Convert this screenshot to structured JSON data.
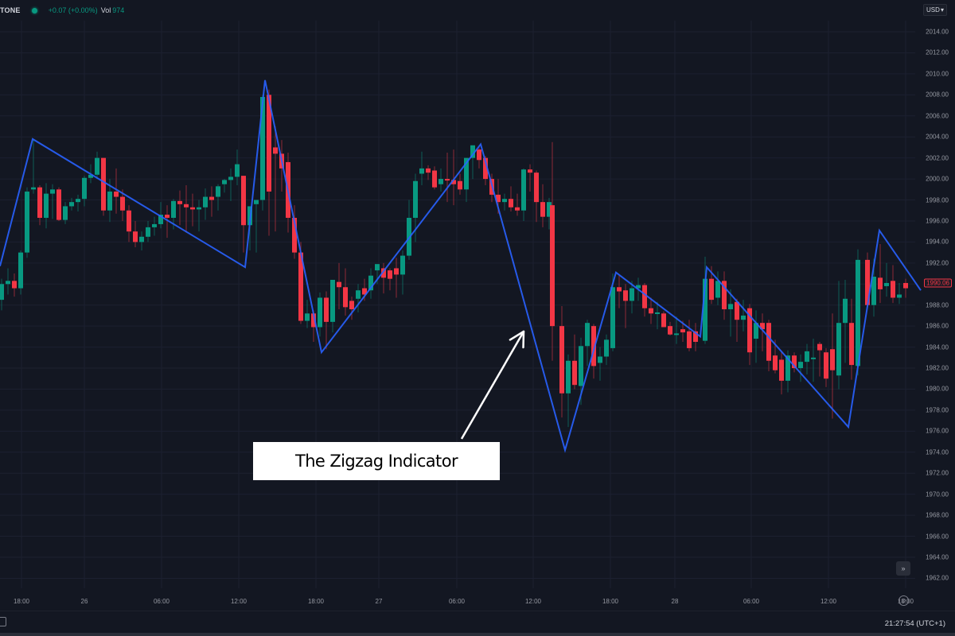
{
  "header": {
    "symbol": "TONE",
    "status_color": "#089981",
    "change": "+0.07 (+0.00%)",
    "vol_label": "Vol",
    "vol_value": "974",
    "currency": "USD",
    "currency_icon": "chevron-down-icon"
  },
  "footer": {
    "clock": "21:27:54 (UTC+1)",
    "calendar_icon": "calendar-icon",
    "settings_icon": "settings-icon",
    "goto_icon": "go-to-realtime-icon"
  },
  "callout": {
    "text": "The Zigzag Indicator"
  },
  "colors": {
    "background": "#131722",
    "up": "#089981",
    "down": "#f23645",
    "zigzag": "#2962ff",
    "grid": "#1c2030",
    "arrow": "#ffffff"
  },
  "chart_data": {
    "type": "candlestick",
    "title": "",
    "xlabel": "",
    "ylabel": "Price (USD)",
    "ylim": [
      1961,
      2015
    ],
    "grid": true,
    "current_price": "1990.06",
    "y_ticks": [
      "2014.00",
      "2012.00",
      "2010.00",
      "2008.00",
      "2006.00",
      "2004.00",
      "2002.00",
      "2000.00",
      "1998.00",
      "1996.00",
      "1994.00",
      "1992.00",
      "1990.00",
      "1988.00",
      "1986.00",
      "1984.00",
      "1982.00",
      "1980.00",
      "1978.00",
      "1976.00",
      "1974.00",
      "1972.00",
      "1970.00",
      "1968.00",
      "1966.00",
      "1964.00",
      "1962.00"
    ],
    "x_ticks": [
      {
        "label": "18:00",
        "x": 27
      },
      {
        "label": "26",
        "x": 106
      },
      {
        "label": "06:00",
        "x": 203
      },
      {
        "label": "12:00",
        "x": 300
      },
      {
        "label": "18:00",
        "x": 397
      },
      {
        "label": "27",
        "x": 476
      },
      {
        "label": "06:00",
        "x": 574
      },
      {
        "label": "12:00",
        "x": 670
      },
      {
        "label": "18:00",
        "x": 767
      },
      {
        "label": "28",
        "x": 848
      },
      {
        "label": "06:00",
        "x": 944
      },
      {
        "label": "12:00",
        "x": 1041
      },
      {
        "label": "18:00",
        "x": 1138
      }
    ],
    "candles": [
      [
        2,
        1988.5,
        1990.5,
        1987.5,
        1990.0
      ],
      [
        10,
        1990.0,
        1991.5,
        1989.0,
        1990.3
      ],
      [
        18,
        1990.3,
        1991.0,
        1988.8,
        1989.6
      ],
      [
        26,
        1989.6,
        1993.2,
        1989.0,
        1993.0
      ],
      [
        34,
        1993.0,
        1999.2,
        1992.5,
        1998.8
      ],
      [
        42,
        1999.0,
        2003.8,
        1998.6,
        1999.2
      ],
      [
        50,
        1999.2,
        1999.4,
        1995.6,
        1996.3
      ],
      [
        58,
        1996.3,
        1999.6,
        1995.3,
        1998.6
      ],
      [
        66,
        1998.6,
        1999.5,
        1996.2,
        1999.0
      ],
      [
        74,
        1999.0,
        1999.2,
        1996.0,
        1996.1
      ],
      [
        82,
        1996.1,
        1997.8,
        1995.7,
        1997.4
      ],
      [
        90,
        1997.4,
        1998.2,
        1997.0,
        1997.8
      ],
      [
        98,
        1997.8,
        1998.5,
        1996.9,
        1998.1
      ],
      [
        106,
        1998.1,
        2000.3,
        1997.4,
        2000.1
      ],
      [
        114,
        2000.1,
        2001.4,
        1999.6,
        2000.4
      ],
      [
        122,
        2000.4,
        2002.6,
        2000.0,
        2002.0
      ],
      [
        130,
        2002.0,
        2002.0,
        1996.5,
        1997.0
      ],
      [
        138,
        1997.0,
        2000.0,
        1995.9,
        1998.8
      ],
      [
        146,
        1998.8,
        2001.0,
        1996.7,
        1998.3
      ],
      [
        154,
        1998.3,
        1999.0,
        1996.0,
        1997.0
      ],
      [
        162,
        1997.0,
        1997.5,
        1994.0,
        1995.0
      ],
      [
        170,
        1995.0,
        1996.0,
        1993.5,
        1994.0
      ],
      [
        178,
        1994.0,
        1995.0,
        1993.2,
        1994.5
      ],
      [
        186,
        1994.5,
        1996.0,
        1994.0,
        1995.4
      ],
      [
        194,
        1995.4,
        1996.4,
        1994.6,
        1995.7
      ],
      [
        202,
        1995.7,
        1997.8,
        1995.3,
        1996.6
      ],
      [
        210,
        1996.6,
        1997.5,
        1994.4,
        1996.3
      ],
      [
        218,
        1996.3,
        1998.1,
        1995.2,
        1997.9
      ],
      [
        226,
        1997.9,
        1998.9,
        1995.6,
        1997.6
      ],
      [
        234,
        1997.6,
        1999.4,
        1994.9,
        1997.3
      ],
      [
        242,
        1997.3,
        1998.6,
        1995.5,
        1997.1
      ],
      [
        250,
        1997.1,
        1998.0,
        1995.0,
        1997.3
      ],
      [
        258,
        1997.3,
        1999.1,
        1996.1,
        1998.3
      ],
      [
        266,
        1998.3,
        1999.3,
        1996.4,
        1998.0
      ],
      [
        274,
        1998.3,
        1999.5,
        1997.0,
        1999.3
      ],
      [
        282,
        1999.5,
        2000.0,
        1998.7,
        1999.9
      ],
      [
        290,
        1999.9,
        2001.0,
        1997.9,
        2000.2
      ],
      [
        298,
        2000.2,
        2002.8,
        1999.4,
        2001.4
      ],
      [
        306,
        2000.3,
        2000.3,
        1993.0,
        1995.6
      ],
      [
        314,
        1995.6,
        1997.4,
        1993.2,
        1997.4
      ],
      [
        322,
        1997.6,
        1997.6,
        1993.0,
        1998.0
      ],
      [
        330,
        1998.0,
        2008.0,
        1997.0,
        2007.8
      ],
      [
        338,
        2008.0,
        2008.5,
        1994.6,
        1998.8
      ],
      [
        346,
        2003.0,
        2005.0,
        1995.0,
        2002.4
      ],
      [
        354,
        2002.4,
        2003.7,
        1998.8,
        2001.0
      ],
      [
        362,
        2001.6,
        2002.5,
        1994.9,
        1996.3
      ],
      [
        370,
        1996.3,
        1997.5,
        1992.4,
        1993.0
      ],
      [
        378,
        1993.0,
        1994.0,
        1986.2,
        1986.5
      ],
      [
        386,
        1986.5,
        1988.5,
        1985.8,
        1987.2
      ],
      [
        394,
        1987.2,
        1987.5,
        1984.5,
        1985.9
      ],
      [
        402,
        1985.9,
        1989.2,
        1985.0,
        1988.7
      ],
      [
        410,
        1988.7,
        1989.3,
        1983.8,
        1986.4
      ],
      [
        418,
        1986.4,
        1990.4,
        1985.4,
        1990.4
      ],
      [
        426,
        1990.2,
        1992.0,
        1987.6,
        1989.7
      ],
      [
        434,
        1989.7,
        1991.5,
        1987.0,
        1987.8
      ],
      [
        442,
        1988.4,
        1988.8,
        1986.6,
        1987.6
      ],
      [
        450,
        1988.6,
        1990.0,
        1987.3,
        1989.4
      ],
      [
        458,
        1989.6,
        1990.5,
        1988.4,
        1989.0
      ],
      [
        466,
        1989.4,
        1991.5,
        1988.6,
        1990.8
      ],
      [
        474,
        1991.3,
        1991.8,
        1990.0,
        1991.9
      ],
      [
        482,
        1991.5,
        1992.0,
        1989.1,
        1990.6
      ],
      [
        490,
        1991.3,
        1991.5,
        1989.4,
        1990.5
      ],
      [
        498,
        1991.5,
        1992.5,
        1988.7,
        1990.9
      ],
      [
        506,
        1990.9,
        1993.2,
        1989.0,
        1992.7
      ],
      [
        514,
        1992.7,
        1998.0,
        1992.3,
        1996.3
      ],
      [
        522,
        1996.3,
        2000.5,
        1994.0,
        1999.8
      ],
      [
        530,
        2000.5,
        2002.6,
        1999.4,
        2001.0
      ],
      [
        538,
        2001.0,
        2001.3,
        1999.9,
        2000.6
      ],
      [
        546,
        2000.8,
        2001.2,
        1999.0,
        1999.2
      ],
      [
        554,
        1999.5,
        2001.0,
        1998.8,
        2000.0
      ],
      [
        562,
        2000.0,
        2002.5,
        1997.8,
        1999.9
      ],
      [
        570,
        1999.9,
        2002.8,
        1997.5,
        1999.5
      ],
      [
        578,
        1999.8,
        2000.5,
        1998.5,
        1999.0
      ],
      [
        586,
        1999.0,
        2001.0,
        1997.8,
        2002.0
      ],
      [
        594,
        2002.0,
        2003.0,
        2000.0,
        2003.2
      ],
      [
        602,
        2002.8,
        2003.0,
        2001.0,
        2001.8
      ],
      [
        610,
        2002.0,
        2002.2,
        1999.4,
        2000.0
      ],
      [
        618,
        2000.0,
        2000.5,
        1997.8,
        1998.5
      ],
      [
        626,
        1998.5,
        2000.0,
        1996.7,
        1997.8
      ],
      [
        634,
        1997.8,
        1998.6,
        1997.0,
        1998.1
      ],
      [
        642,
        1998.1,
        1999.3,
        1996.9,
        1997.3
      ],
      [
        650,
        1997.3,
        1998.6,
        1996.5,
        1997.0
      ],
      [
        658,
        1997.0,
        2001.0,
        1996.0,
        2000.9
      ],
      [
        666,
        2000.9,
        2001.4,
        1998.8,
        2000.6
      ],
      [
        674,
        2000.6,
        2000.8,
        1995.9,
        1997.8
      ],
      [
        682,
        1997.8,
        1999.5,
        1995.4,
        1996.4
      ],
      [
        690,
        1996.4,
        1998.2,
        1995.2,
        1997.8
      ],
      [
        694,
        1997.5,
        2003.5,
        1982.7,
        1986.0
      ],
      [
        706,
        1986.0,
        1987.9,
        1977.3,
        1979.6
      ],
      [
        714,
        1979.6,
        1983.3,
        1976.4,
        1982.7
      ],
      [
        722,
        1982.7,
        1985.2,
        1980.0,
        1980.4
      ],
      [
        730,
        1980.3,
        1984.9,
        1978.5,
        1984.1
      ],
      [
        738,
        1984.1,
        1986.6,
        1982.2,
        1986.3
      ],
      [
        746,
        1986.0,
        1986.2,
        1981.0,
        1982.2
      ],
      [
        754,
        1982.5,
        1984.0,
        1980.8,
        1983.1
      ],
      [
        762,
        1983.1,
        1985.2,
        1982.3,
        1984.7
      ],
      [
        770,
        1983.9,
        1991.0,
        1983.6,
        1989.7
      ],
      [
        778,
        1989.7,
        1990.8,
        1987.7,
        1989.3
      ],
      [
        786,
        1989.4,
        1990.0,
        1985.8,
        1988.4
      ],
      [
        794,
        1988.4,
        1990.3,
        1987.2,
        1989.6
      ],
      [
        802,
        1989.6,
        1990.6,
        1988.4,
        1989.9
      ],
      [
        810,
        1989.9,
        1990.1,
        1986.9,
        1987.7
      ],
      [
        818,
        1987.7,
        1988.7,
        1986.2,
        1987.2
      ],
      [
        826,
        1987.2,
        1988.3,
        1985.7,
        1987.3
      ],
      [
        834,
        1987.2,
        1987.4,
        1985.9,
        1985.9
      ],
      [
        842,
        1986.0,
        1986.4,
        1985.1,
        1985.2
      ],
      [
        850,
        1985.2,
        1986.9,
        1984.3,
        1985.3
      ],
      [
        858,
        1985.7,
        1986.5,
        1984.5,
        1985.4
      ],
      [
        866,
        1985.5,
        1986.6,
        1983.6,
        1983.9
      ],
      [
        874,
        1985.5,
        1986.3,
        1983.6,
        1984.5
      ],
      [
        886,
        1984.6,
        1992.6,
        1984.3,
        1990.5
      ],
      [
        894,
        1990.5,
        1991.7,
        1988.1,
        1988.5
      ],
      [
        902,
        1988.7,
        1991.2,
        1988.0,
        1990.3
      ],
      [
        910,
        1990.3,
        1991.2,
        1986.6,
        1987.6
      ],
      [
        918,
        1987.6,
        1989.5,
        1985.0,
        1988.1
      ],
      [
        926,
        1988.3,
        1988.6,
        1984.5,
        1986.6
      ],
      [
        934,
        1986.6,
        1988.5,
        1985.5,
        1987.0
      ],
      [
        942,
        1987.7,
        1988.1,
        1982.3,
        1983.5
      ],
      [
        950,
        1984.8,
        1987.5,
        1982.5,
        1986.3
      ],
      [
        958,
        1986.3,
        1987.2,
        1983.6,
        1985.7
      ],
      [
        966,
        1986.3,
        1986.6,
        1981.7,
        1982.7
      ],
      [
        974,
        1983.2,
        1984.7,
        1981.5,
        1981.8
      ],
      [
        982,
        1982.8,
        1983.6,
        1979.5,
        1980.8
      ],
      [
        990,
        1980.8,
        1983.7,
        1979.7,
        1983.2
      ],
      [
        998,
        1983.2,
        1983.5,
        1981.6,
        1982.0
      ],
      [
        1006,
        1982.0,
        1983.3,
        1980.7,
        1982.6
      ],
      [
        1014,
        1982.6,
        1984.3,
        1981.4,
        1983.6
      ],
      [
        1022,
        1982.9,
        1984.8,
        1980.7,
        1983.0
      ],
      [
        1030,
        1984.3,
        1984.5,
        1981.2,
        1983.7
      ],
      [
        1038,
        1983.5,
        1983.9,
        1980.2,
        1981.0
      ],
      [
        1046,
        1983.8,
        1987.2,
        1977.2,
        1981.8
      ],
      [
        1054,
        1981.3,
        1990.3,
        1980.0,
        1986.3
      ],
      [
        1062,
        1986.3,
        1990.4,
        1982.5,
        1988.6
      ],
      [
        1070,
        1986.3,
        1988.6,
        1980.9,
        1982.3
      ],
      [
        1078,
        1982.2,
        1993.3,
        1981.3,
        1992.3
      ],
      [
        1090,
        1992.3,
        1993.0,
        1987.9,
        1988.0
      ],
      [
        1098,
        1988.0,
        1992.4,
        1986.9,
        1990.7
      ],
      [
        1106,
        1990.6,
        1993.8,
        1988.2,
        1989.5
      ],
      [
        1114,
        1989.8,
        1992.0,
        1988.8,
        1990.1
      ],
      [
        1122,
        1990.3,
        1991.8,
        1988.2,
        1988.7
      ],
      [
        1130,
        1988.7,
        1990.1,
        1988.1,
        1989.0
      ],
      [
        1138,
        1990.1,
        1990.5,
        1988.7,
        1989.6
      ]
    ],
    "zigzag": [
      [
        0,
        1991.7
      ],
      [
        41,
        2003.8
      ],
      [
        308,
        1991.6
      ],
      [
        333,
        2009.4
      ],
      [
        404,
        1983.5
      ],
      [
        604,
        2003.3
      ],
      [
        710,
        1974.2
      ],
      [
        774,
        1991.1
      ],
      [
        880,
        1985.0
      ],
      [
        888,
        1991.6
      ],
      [
        1066,
        1976.4
      ],
      [
        1105,
        1995.1
      ],
      [
        1157,
        1989.4
      ]
    ],
    "annotation": {
      "text": "The Zigzag Indicator",
      "arrow_from": [
        580,
        552
      ],
      "arrow_to": [
        658,
        417
      ]
    }
  }
}
